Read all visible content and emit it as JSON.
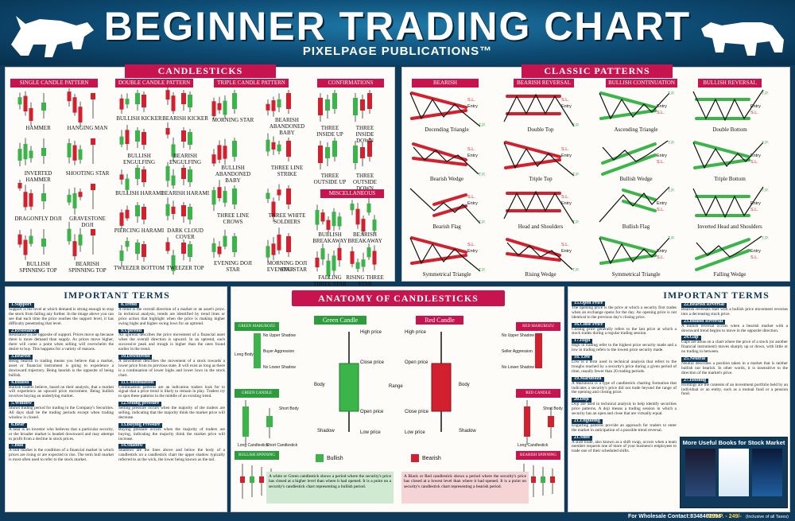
{
  "header": {
    "title": "BEGINNER TRADING CHART",
    "subtitle": "PIXELPAGE PUBLICATIONS™"
  },
  "candlesticks": {
    "banner": "CANDLESTICKS",
    "categories": [
      "SINGLE CANDLE PATTERN",
      "DOUBLE CANDLE PATTERN",
      "TRIPLE CANDLE PATTERN",
      "CONFIRMATIONS"
    ],
    "single": [
      "HAMMER",
      "HANGING MAN",
      "INVERTED HAMMER",
      "SHOOTING STAR",
      "DRAGONFLY DOJI",
      "GRAVESTONE DOJI",
      "BULLISH SPINNING TOP",
      "BEARISH SPINNING TOP"
    ],
    "double": [
      "BULLISH KICKER",
      "BEARISH KICKER",
      "BULLISH ENGULFING",
      "BEARISH ENGULFING",
      "BULLISH HARAMI",
      "BEARISH HARAMI",
      "PIERCING HARAMI",
      "DARK CLOUD COVER",
      "TWEEZER BOTTOM",
      "TWEEZER TOP"
    ],
    "triple": [
      "MORNING STAR",
      "BEARISH ABANDONED BABY",
      "BULLISH ABANDONED BABY",
      "THREE LINE STRIKE",
      "THREE LINE CROWS",
      "THREE WHITE SOLDIERS",
      "EVENING DOJI STAR",
      "MORNING DOJI STAR",
      "EVENING STAR"
    ],
    "confirmations": [
      "THREE INSIDE UP",
      "THREE INSIDE DOWN",
      "THREE OUTSIDE UP",
      "THREE OUTSIDE DOWN"
    ],
    "misc_banner": "MISCELLANEOUS",
    "misc": [
      "BULLISH BREAKAWAY",
      "BEARISH BREAKAWAY",
      "FALLING THREE STAR METHOD",
      "RISING THREE STAR METHOD"
    ]
  },
  "classic": {
    "banner": "CLASSIC PATTERNS",
    "categories": [
      "BEARISH CONTINUATION",
      "BEARISH REVERSAL",
      "BULLISH CONTINUATION",
      "BULLISH REVERSAL"
    ],
    "patterns": [
      "Decending Triangle",
      "Double Top",
      "Ascending Triangle",
      "Double Bottom",
      "Bearish Wedge",
      "Triple Top",
      "Bullish Wedge",
      "Triple Bottom",
      "Bearish Flag",
      "Head and Shoulders",
      "Bullish Flag",
      "Inverted Head and Shoulders",
      "Symmetrical Triangle",
      "Rising Wedge",
      "Symmetrical Triangle",
      "Falling Wedge"
    ],
    "annotations": {
      "sl": "S.L.",
      "tp": "T.P.",
      "entry": "Entry"
    }
  },
  "terms_left": {
    "banner": "IMPORTANT TERMS",
    "items": [
      {
        "title": "1.Support",
        "text": "Support is the level at which demand is strong enough to stop the stock from falling any further. In the image above you can see that each time the price reaches the support level, it has difficulty penetrating that level."
      },
      {
        "title": "2.Resistance",
        "text": "Resistance is the opposite of support. Prices move up because there is more demand than supply. As prices move higher, there will come a point when selling will overwhelm the desire to buy. This happens for a variety of reasons."
      },
      {
        "title": "3.Bearish",
        "text": "Being bearish in trading means you believe that a market, asset or financial instrument is going to experience a downward trajectory. Being bearish is the opposite of being bullish."
      },
      {
        "title": "4.Bullish",
        "text": "Bullish traders believe, based on their analysis, that a market will experience an upward price movement. Being bullish involves buying an underlying market."
      },
      {
        "title": "5.Window",
        "text": "Shows trading period for trading in the Company's Securities. All days shall be the trading periods except when trading window is closed."
      },
      {
        "title": "6.Bear",
        "text": "A bear is an investor who believes that a particular security, or the broader market is headed downward and may attempt to profit from a decline in stock prices."
      },
      {
        "title": "7.Bull",
        "text": "A bull market is the condition of a financial market in which prices are rising or are expected to rise. The term bull market is most often used to refer to the stock market."
      }
    ],
    "items2": [
      {
        "title": "8.Trend",
        "text": "A trend is the overall direction of a market or an asset's price. In technical analysis, trends are identified by trend lines or price action that highlight when the price is making higher swing highs and higher swing lows for an uptrend."
      },
      {
        "title": "9.Uptrend",
        "text": "An uptrend describes the price movement of a financial asset when the overall direction is upward. In an uptrend, each successive peak and trough is higher than the ones found earlier in the trend."
      },
      {
        "title": "10.Downtrend",
        "text": "A downtrend describes the movement of a stock towards a lower price from its previous state. It will exist as long as there is a continuation of lower highs and lower lows in the stock chart."
      },
      {
        "title": "11.Continuation",
        "text": "Continuation patterns are an indication traders look for to signal that a price trend is likely to remain in play. Traders try to spot these patterns in the middle of an existing trend."
      },
      {
        "title": "12.Selling pressure",
        "text": "Selling pressure occurs when the majority of the traders are selling, indicating that the majority think the market price will decrease."
      },
      {
        "title": "13.Buying Pressure",
        "text": "Buying pressure occurs when the majority of traders are buying, indicating the majority think the market price will increase."
      },
      {
        "title": "14.Shadow",
        "text": "Shadows are the lines above and below the body of a candlestick on a candlestick chart the upper shadow typically referred to as the wick, the lower being known as the tail."
      }
    ]
  },
  "anatomy": {
    "banner": "ANATOMY OF CANDLESTICKS",
    "green_tag": "Green Candle",
    "red_tag": "Red Candle",
    "labels": {
      "high": "High price",
      "close": "Close price",
      "open": "Open price",
      "low": "Low price",
      "body": "Body",
      "shadow": "Shadow",
      "range": "Range"
    },
    "side_tags": [
      "Green marubozu",
      "Green candle",
      "Bullish spinning top",
      "Red marubozu",
      "Red candle",
      "Bearish spinning top"
    ],
    "side_labels": {
      "no_upper": "No Upper Shadow",
      "no_lower": "No Lower Shadow",
      "buyer": "Buyer Aggression",
      "seller": "Seller Aggression",
      "long_body": "Long Body",
      "short_body": "Short Body",
      "long_candle": "Long Candlestick",
      "short_candle": "Short Candlestick"
    },
    "legend": [
      "Bullish",
      "Bearish"
    ],
    "note_green": "A white or Green candlestick shows a period where the security's price has closed at a higher level than where it had opened. It is a point on a security's candlestick chart representing a bullish period.",
    "note_red": "A Black or Red candlestick shows a period where the security's price has closed at a lowest level than where it had opened. It is a point on security's candlestick chart representing a bearish period."
  },
  "terms_right": {
    "banner": "IMPORTANT TERMS",
    "items": [
      {
        "title": "15.Open Price",
        "text": "The opening price is the price at which a security first trades when an exchange opens for the day. An opening price is not identical to the previous day's closing price."
      },
      {
        "title": "16.Close Price",
        "text": "Closing price generally refers to the last price at which a stock trades during a regular trading session."
      },
      {
        "title": "17.High",
        "text": "High in trading refer to the highest price security made and a low in trading refers to the lowest price security made."
      },
      {
        "title": "18. Low",
        "text": "Low is a term used in technical analysis that refers to the troughs reached by a security's price during a given period of time, usually fewer than 20 trading periods."
      },
      {
        "title": "19.Marubozu",
        "text": "A Marubozu is a type of candlestick charting formation that indicates a security's price did not trade beyond the range of the opening and closing price."
      },
      {
        "title": "20.Doji",
        "text": "Doji are used in technical analysis to help identify securities price patterns. A doji means a trading session in which a security has an open and close that are virtually equal."
      },
      {
        "title": "21.Engulfing",
        "text": "Engulfing patterns provide an approach for traders to enter the market in anticipation of a possible trend reversal."
      },
      {
        "title": "21.Shift",
        "text": "A shift trade, also known as a shift swap, occurs when a team member requests one of more of your business's employees to trade one of their scheduled shifts."
      }
    ],
    "items2": [
      {
        "title": "22.Bearish Reversal",
        "text": "Bearish reversals start with a bullish price movement reverses into a decreasing stock price."
      },
      {
        "title": "23.Bullish Reversal",
        "text": "A bullish reversal occurs when a bearish market with a downward trend begins to move in the opposite direction."
      },
      {
        "title": "24.Gap",
        "text": "Gaps are areas on a chart where the price of a stock (or another financial instrument) moves sharply up or down, with little or no trading in between."
      },
      {
        "title": "25.Neutral",
        "text": "Neutral describes a position taken in a market that is neither bullish nor bearish. In other words, it is insensitive to the direction of the market's price."
      },
      {
        "title": "27.Holding",
        "text": "Holdings are the contents of an investment portfolio held by an individual or an entity, such as a mutual fund or a pension fund."
      }
    ],
    "books_title": "More Useful Books for Stock Market"
  },
  "footer": {
    "wholesale": "For Wholesale Contact:8348461996",
    "mrp": "M.R.P. - 249/-",
    "tax": "(Inclusive of all Taxes)"
  },
  "colors": {
    "green": "#3bb54a",
    "red": "#d2202e",
    "navy": "#0f3a5a",
    "pink": "#c8144e"
  }
}
